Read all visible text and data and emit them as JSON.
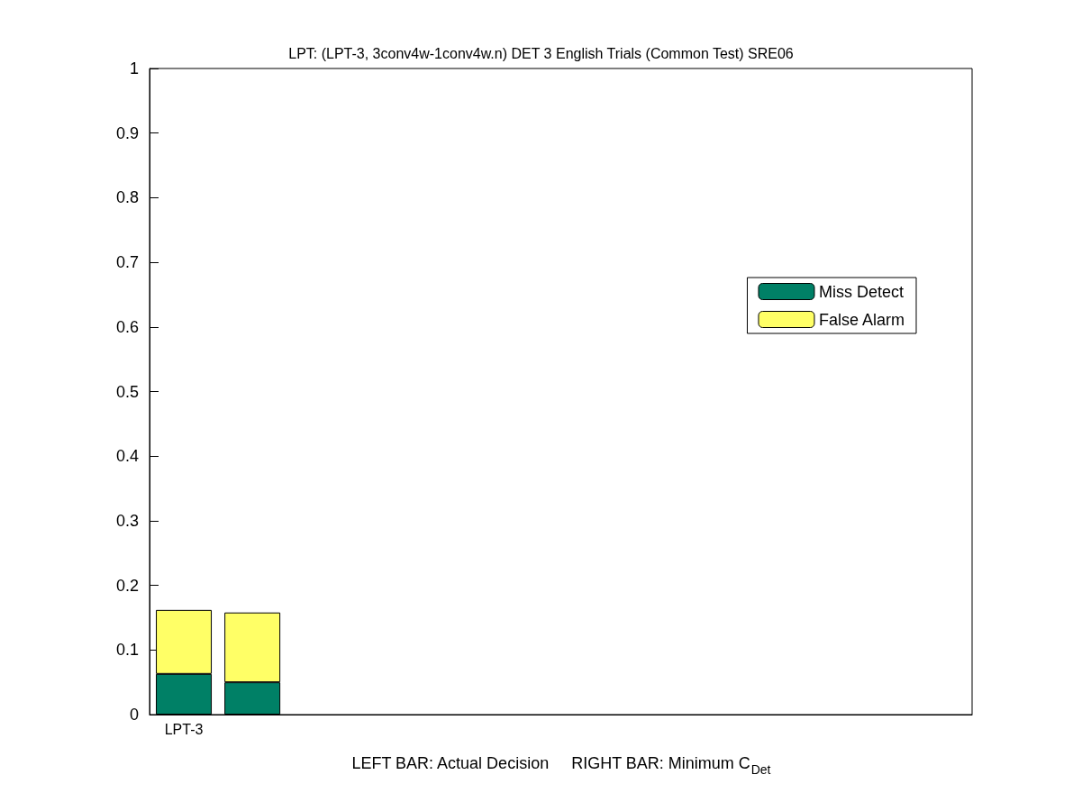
{
  "chart_data": {
    "type": "bar",
    "title": "LPT: (LPT-3, 3conv4w-1conv4w.n) DET 3 English Trials (Common Test) SRE06",
    "xlabel": "LEFT BAR: Actual Decision     RIGHT BAR: Minimum C$_{Det}$",
    "categories": [
      "LPT-3",
      null,
      null,
      null,
      null,
      null,
      null,
      null,
      null,
      null,
      null,
      null
    ],
    "stacked": true,
    "series": [
      {
        "name": "Miss Detect",
        "color": "#008066",
        "values": [
          0.063,
          0.05,
          null,
          null,
          null,
          null,
          null,
          null,
          null,
          null,
          null,
          null
        ]
      },
      {
        "name": "False Alarm",
        "color": "#ffff66",
        "values": [
          0.099,
          0.108,
          null,
          null,
          null,
          null,
          null,
          null,
          null,
          null,
          null,
          null
        ]
      }
    ],
    "ylim": [
      0,
      1
    ],
    "yticks": [
      0,
      0.1,
      0.2,
      0.3,
      0.4,
      0.5,
      0.6,
      0.7,
      0.8,
      0.9,
      1
    ],
    "grid": false,
    "legend": "right"
  }
}
